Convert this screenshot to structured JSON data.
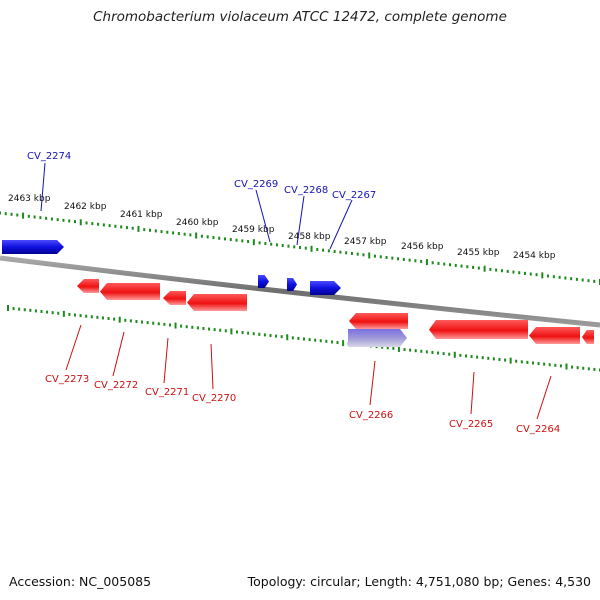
{
  "title": "Chromobacterium violaceum ATCC 12472, complete genome",
  "accession_text": "Accession: NC_005085",
  "topology_text": "Topology: circular; Length: 4,751,080 bp; Genes: 4,530",
  "colors": {
    "forward_gene": "#1010e0",
    "reverse_gene": "#ee1111",
    "forward_label": "#1414b4",
    "reverse_label": "#cc1111",
    "tick": "#1e8a1e",
    "backbone": "#808080"
  },
  "kbp_ticks": [
    "2463 kbp",
    "2462 kbp",
    "2461 kbp",
    "2460 kbp",
    "2459 kbp",
    "2458 kbp",
    "2457 kbp",
    "2456 kbp",
    "2455 kbp",
    "2454 kbp"
  ],
  "forward_labels": [
    "CV_2274",
    "CV_2269",
    "CV_2268",
    "CV_2267"
  ],
  "reverse_labels": [
    "CV_2273",
    "CV_2272",
    "CV_2271",
    "CV_2270",
    "CV_2266",
    "CV_2265",
    "CV_2264"
  ]
}
